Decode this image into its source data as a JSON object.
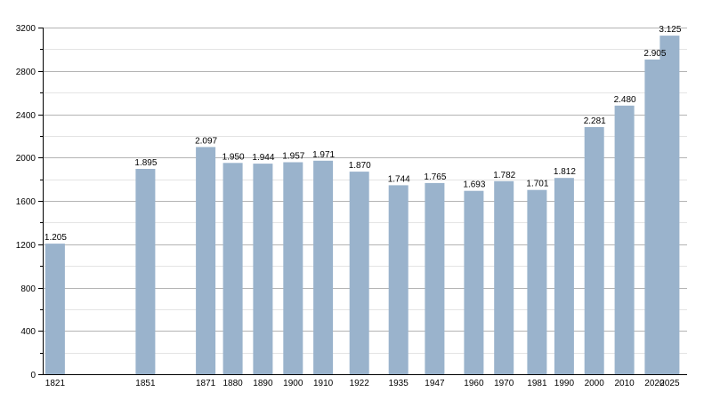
{
  "chart_data": {
    "type": "bar",
    "title": "",
    "xlabel": "",
    "ylabel": "",
    "x_axis_type": "year",
    "categories": [
      1821,
      1851,
      1871,
      1880,
      1890,
      1900,
      1910,
      1922,
      1935,
      1947,
      1960,
      1970,
      1981,
      1990,
      2000,
      2010,
      2020,
      2025
    ],
    "x_tick_labels": [
      "1821",
      "1851",
      "1871",
      "1880",
      "1890",
      "1900",
      "1910",
      "1922",
      "1935",
      "1947",
      "1960",
      "1970",
      "1981",
      "1990",
      "2000",
      "2010",
      "2020",
      "2025"
    ],
    "values": [
      1205,
      1895,
      2097,
      1950,
      1944,
      1957,
      1971,
      1870,
      1744,
      1765,
      1693,
      1782,
      1701,
      1812,
      2281,
      2480,
      2905,
      3125
    ],
    "data_labels": [
      "1.205",
      "1.895",
      "2.097",
      "1.950",
      "1.944",
      "1.957",
      "1.971",
      "1.870",
      "1.744",
      "1.765",
      "1.693",
      "1.782",
      "1.701",
      "1.812",
      "2.281",
      "2.480",
      "2.905",
      "3.125"
    ],
    "ylim": [
      0,
      3200
    ],
    "y_ticks": [
      0,
      400,
      800,
      1200,
      1600,
      2000,
      2400,
      2800,
      3200
    ],
    "y_tick_labels": [
      "0",
      "400",
      "800",
      "1200",
      "1600",
      "2000",
      "2400",
      "2800",
      "3200"
    ],
    "grid": true,
    "legend": "none",
    "colors": {
      "bar": "#9ab3cc",
      "major_grid": "#b4b4b4",
      "minor_grid": "#e4e4e4",
      "axis": "#000000",
      "text": "#000000"
    }
  }
}
